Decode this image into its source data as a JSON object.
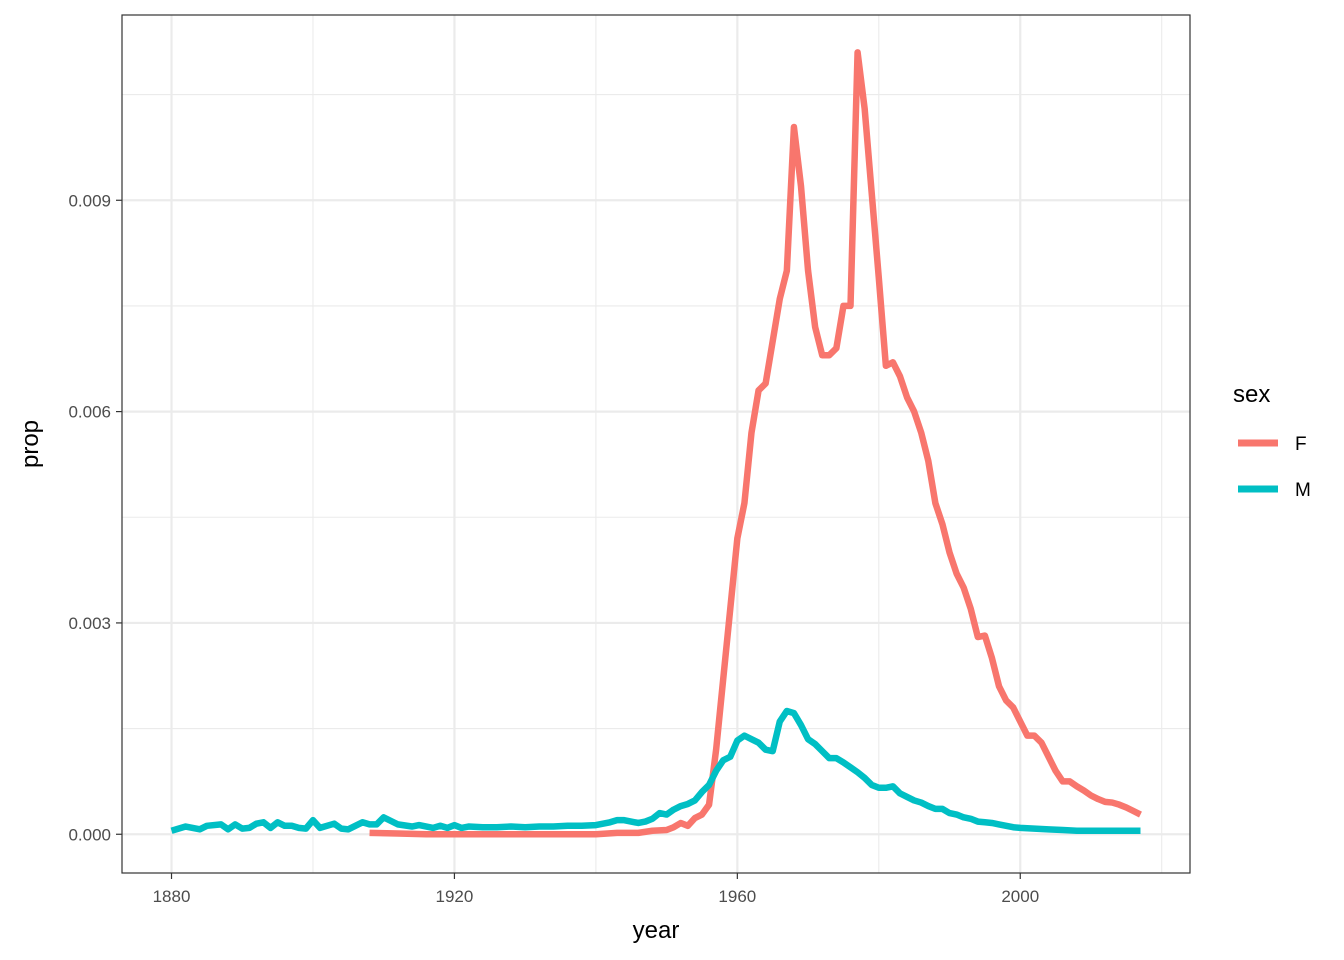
{
  "chart_data": {
    "type": "line",
    "xlabel": "year",
    "ylabel": "prop",
    "xlim": [
      1873,
      2024
    ],
    "ylim": [
      -0.00055,
      0.01163
    ],
    "x_ticks": [
      1880,
      1920,
      1960,
      2000
    ],
    "x_tick_labels": [
      "1880",
      "1920",
      "1960",
      "2000"
    ],
    "x_minor_ticks": [
      1900,
      1940,
      1980,
      2020
    ],
    "y_ticks": [
      0.0,
      0.003,
      0.006,
      0.009
    ],
    "y_tick_labels": [
      "0.000",
      "0.003",
      "0.006",
      "0.009"
    ],
    "y_minor_ticks": [
      0.0015,
      0.0045,
      0.0075,
      0.0105
    ],
    "grid": true,
    "legend": {
      "title": "sex",
      "position": "right"
    },
    "series": [
      {
        "name": "F",
        "color": "#F8766D",
        "points": [
          [
            1908,
            2e-05
          ],
          [
            1912,
            1e-05
          ],
          [
            1916,
            0.0
          ],
          [
            1920,
            0.0
          ],
          [
            1925,
            0.0
          ],
          [
            1930,
            0.0
          ],
          [
            1935,
            0.0
          ],
          [
            1940,
            0.0
          ],
          [
            1943,
            2e-05
          ],
          [
            1946,
            2e-05
          ],
          [
            1948,
            5e-05
          ],
          [
            1950,
            6e-05
          ],
          [
            1951,
            0.0001
          ],
          [
            1952,
            0.00016
          ],
          [
            1953,
            0.00012
          ],
          [
            1954,
            0.00023
          ],
          [
            1955,
            0.00028
          ],
          [
            1956,
            0.00042
          ],
          [
            1957,
            0.0012
          ],
          [
            1958,
            0.0022
          ],
          [
            1959,
            0.0032
          ],
          [
            1960,
            0.0042
          ],
          [
            1961,
            0.0047
          ],
          [
            1962,
            0.0057
          ],
          [
            1963,
            0.0063
          ],
          [
            1964,
            0.0064
          ],
          [
            1965,
            0.007
          ],
          [
            1966,
            0.0076
          ],
          [
            1967,
            0.008
          ],
          [
            1968,
            0.01004
          ],
          [
            1969,
            0.0092
          ],
          [
            1970,
            0.008
          ],
          [
            1971,
            0.0072
          ],
          [
            1972,
            0.0068
          ],
          [
            1973,
            0.0068
          ],
          [
            1974,
            0.0069
          ],
          [
            1975,
            0.0075
          ],
          [
            1976,
            0.0075
          ],
          [
            1977,
            0.0111
          ],
          [
            1978,
            0.0103
          ],
          [
            1979,
            0.0091
          ],
          [
            1980,
            0.0079
          ],
          [
            1981,
            0.00665
          ],
          [
            1982,
            0.0067
          ],
          [
            1983,
            0.0065
          ],
          [
            1984,
            0.0062
          ],
          [
            1985,
            0.006
          ],
          [
            1986,
            0.0057
          ],
          [
            1987,
            0.0053
          ],
          [
            1988,
            0.0047
          ],
          [
            1989,
            0.0044
          ],
          [
            1990,
            0.004
          ],
          [
            1991,
            0.0037
          ],
          [
            1992,
            0.0035
          ],
          [
            1993,
            0.0032
          ],
          [
            1994,
            0.0028
          ],
          [
            1995,
            0.00282
          ],
          [
            1996,
            0.0025
          ],
          [
            1997,
            0.0021
          ],
          [
            1998,
            0.0019
          ],
          [
            1999,
            0.0018
          ],
          [
            2000,
            0.0016
          ],
          [
            2001,
            0.0014
          ],
          [
            2002,
            0.0014
          ],
          [
            2003,
            0.0013
          ],
          [
            2004,
            0.0011
          ],
          [
            2005,
            0.0009
          ],
          [
            2006,
            0.00075
          ],
          [
            2007,
            0.00075
          ],
          [
            2008,
            0.00068
          ],
          [
            2009,
            0.00062
          ],
          [
            2010,
            0.00055
          ],
          [
            2011,
            0.0005
          ],
          [
            2012,
            0.00046
          ],
          [
            2013,
            0.00045
          ],
          [
            2014,
            0.00042
          ],
          [
            2015,
            0.00038
          ],
          [
            2016,
            0.00033
          ],
          [
            2017,
            0.00028
          ]
        ]
      },
      {
        "name": "M",
        "color": "#00BFC4",
        "points": [
          [
            1880,
            5e-05
          ],
          [
            1882,
            0.00011
          ],
          [
            1884,
            7e-05
          ],
          [
            1885,
            0.00012
          ],
          [
            1887,
            0.00014
          ],
          [
            1888,
            7e-05
          ],
          [
            1889,
            0.00014
          ],
          [
            1890,
            8e-05
          ],
          [
            1891,
            9e-05
          ],
          [
            1892,
            0.00015
          ],
          [
            1893,
            0.00017
          ],
          [
            1894,
            9e-05
          ],
          [
            1895,
            0.00017
          ],
          [
            1896,
            0.00012
          ],
          [
            1897,
            0.00012
          ],
          [
            1898,
            9e-05
          ],
          [
            1899,
            8e-05
          ],
          [
            1900,
            0.0002
          ],
          [
            1901,
            9e-05
          ],
          [
            1903,
            0.00015
          ],
          [
            1904,
            8e-05
          ],
          [
            1905,
            7e-05
          ],
          [
            1906,
            0.00012
          ],
          [
            1907,
            0.00017
          ],
          [
            1908,
            0.00014
          ],
          [
            1909,
            0.00014
          ],
          [
            1910,
            0.00024
          ],
          [
            1911,
            0.00019
          ],
          [
            1912,
            0.00014
          ],
          [
            1914,
            0.00011
          ],
          [
            1915,
            0.00013
          ],
          [
            1917,
            9e-05
          ],
          [
            1918,
            0.00012
          ],
          [
            1919,
            9e-05
          ],
          [
            1920,
            0.00013
          ],
          [
            1921,
            9e-05
          ],
          [
            1922,
            0.00011
          ],
          [
            1924,
            0.0001
          ],
          [
            1926,
            0.0001
          ],
          [
            1928,
            0.00011
          ],
          [
            1930,
            0.0001
          ],
          [
            1932,
            0.00011
          ],
          [
            1934,
            0.00011
          ],
          [
            1936,
            0.00012
          ],
          [
            1938,
            0.00012
          ],
          [
            1940,
            0.00013
          ],
          [
            1942,
            0.00017
          ],
          [
            1943,
            0.0002
          ],
          [
            1944,
            0.0002
          ],
          [
            1946,
            0.00016
          ],
          [
            1947,
            0.00018
          ],
          [
            1948,
            0.00022
          ],
          [
            1949,
            0.0003
          ],
          [
            1950,
            0.00028
          ],
          [
            1951,
            0.00035
          ],
          [
            1952,
            0.0004
          ],
          [
            1953,
            0.00043
          ],
          [
            1954,
            0.00048
          ],
          [
            1955,
            0.0006
          ],
          [
            1956,
            0.0007
          ],
          [
            1957,
            0.0009
          ],
          [
            1958,
            0.00105
          ],
          [
            1959,
            0.0011
          ],
          [
            1960,
            0.00133
          ],
          [
            1961,
            0.0014
          ],
          [
            1962,
            0.00135
          ],
          [
            1963,
            0.0013
          ],
          [
            1964,
            0.0012
          ],
          [
            1965,
            0.00118
          ],
          [
            1966,
            0.0016
          ],
          [
            1967,
            0.00175
          ],
          [
            1968,
            0.00172
          ],
          [
            1969,
            0.00155
          ],
          [
            1970,
            0.00135
          ],
          [
            1971,
            0.00128
          ],
          [
            1972,
            0.00118
          ],
          [
            1973,
            0.00108
          ],
          [
            1974,
            0.00108
          ],
          [
            1975,
            0.00102
          ],
          [
            1976,
            0.00095
          ],
          [
            1977,
            0.00088
          ],
          [
            1978,
            0.0008
          ],
          [
            1979,
            0.0007
          ],
          [
            1980,
            0.00066
          ],
          [
            1981,
            0.00066
          ],
          [
            1982,
            0.00068
          ],
          [
            1983,
            0.00058
          ],
          [
            1984,
            0.00053
          ],
          [
            1985,
            0.00048
          ],
          [
            1986,
            0.00045
          ],
          [
            1987,
            0.0004
          ],
          [
            1988,
            0.00036
          ],
          [
            1989,
            0.00036
          ],
          [
            1990,
            0.0003
          ],
          [
            1991,
            0.00028
          ],
          [
            1992,
            0.00024
          ],
          [
            1993,
            0.00022
          ],
          [
            1994,
            0.00018
          ],
          [
            1995,
            0.00017
          ],
          [
            1996,
            0.00016
          ],
          [
            1997,
            0.00014
          ],
          [
            1998,
            0.00012
          ],
          [
            1999,
            0.0001
          ],
          [
            2000,
            9e-05
          ],
          [
            2002,
            8e-05
          ],
          [
            2004,
            7e-05
          ],
          [
            2006,
            6e-05
          ],
          [
            2008,
            5e-05
          ],
          [
            2010,
            5e-05
          ],
          [
            2012,
            5e-05
          ],
          [
            2014,
            5e-05
          ],
          [
            2017,
            5e-05
          ]
        ]
      }
    ]
  }
}
